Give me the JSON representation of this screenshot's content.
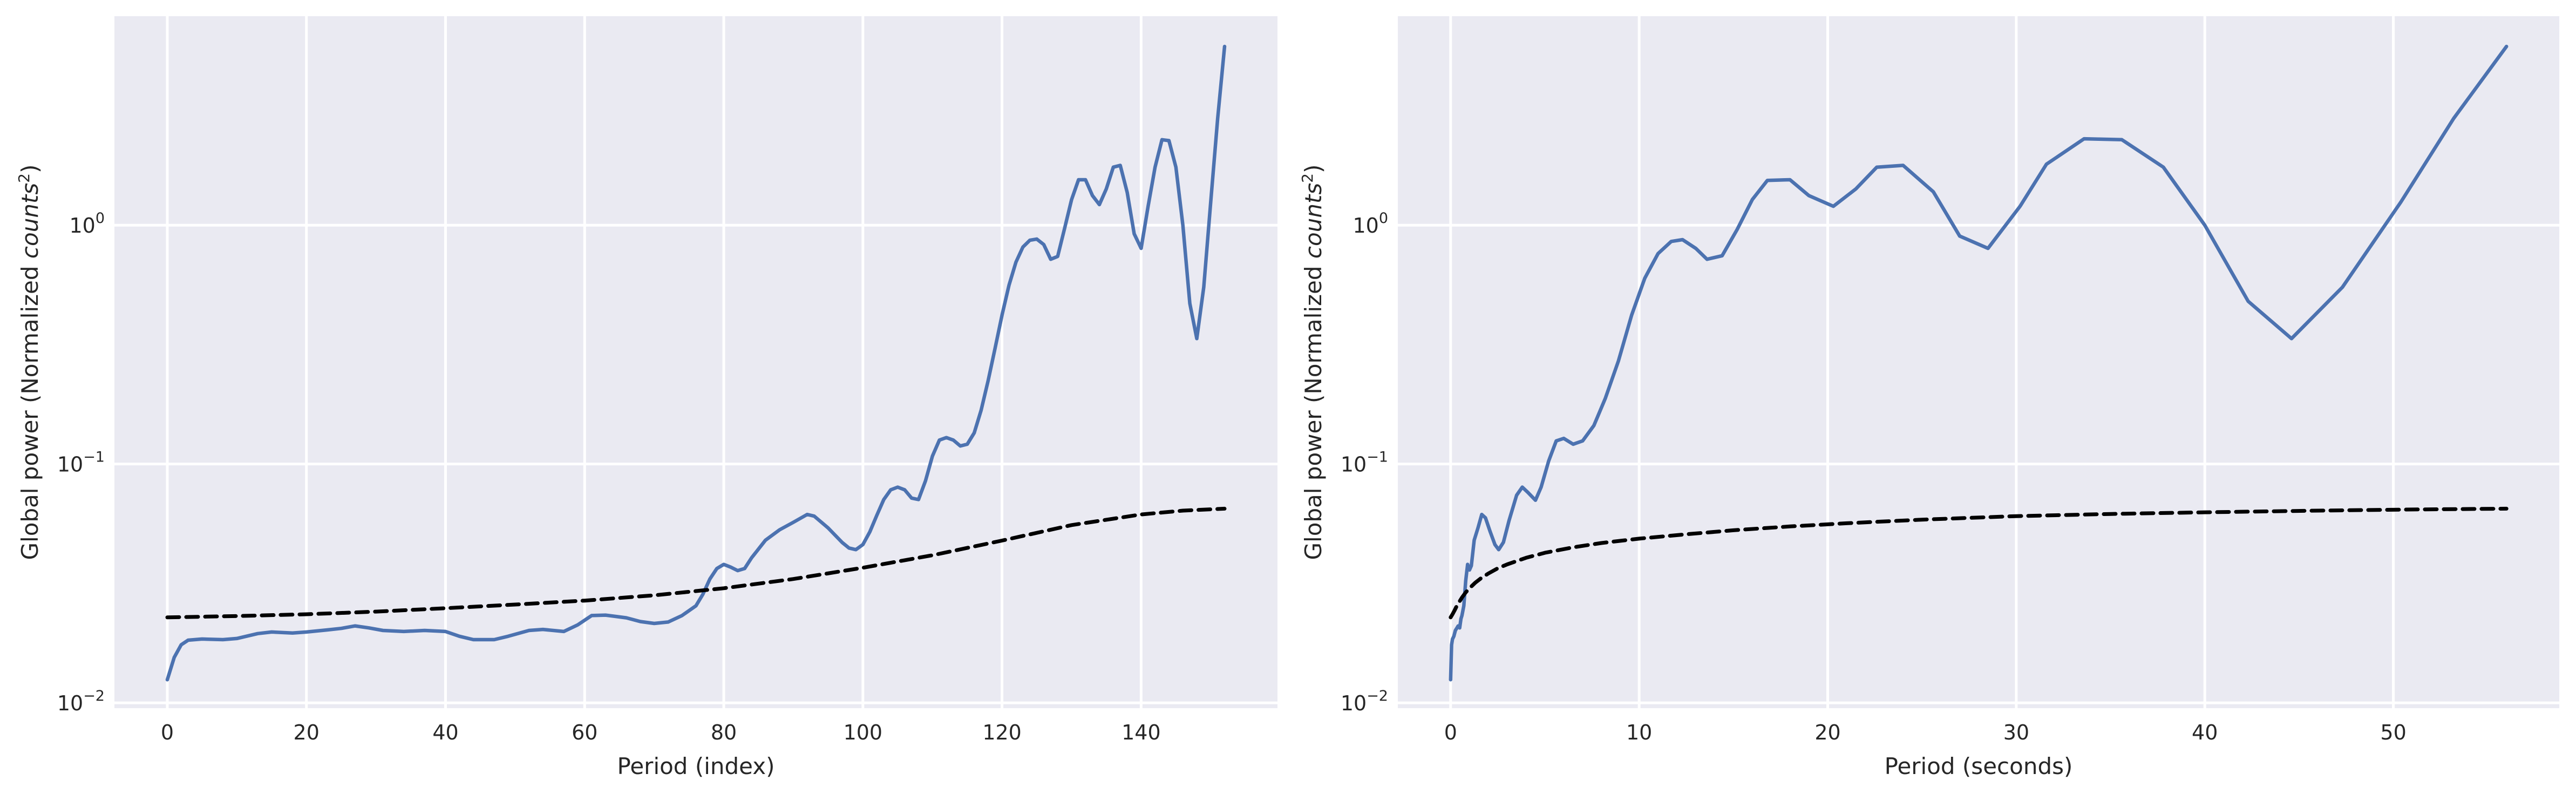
{
  "chart_data": [
    {
      "type": "line",
      "xlabel": "Period (index)",
      "ylabel_main": "Global power (Normalized ",
      "ylabel_italic": "counts",
      "ylabel_sup": "2",
      "ylabel_close": ")",
      "yscale": "log",
      "xlim": [
        -7.6,
        159.6
      ],
      "ylim": [
        0.0095,
        7.5
      ],
      "grid": true,
      "xticks": [
        0,
        20,
        40,
        60,
        80,
        100,
        120,
        140
      ],
      "xtick_labels": [
        "0",
        "20",
        "40",
        "60",
        "80",
        100,
        "120",
        "140"
      ],
      "yticks": [
        0.01,
        0.1,
        1
      ],
      "ytick_labels": [
        {
          "base": "10",
          "exp": "−2"
        },
        {
          "base": "10",
          "exp": "−1"
        },
        {
          "base": "10",
          "exp": "0"
        }
      ],
      "series": [
        {
          "color": "#4C72B0",
          "style": "solid",
          "points": [
            [
              0,
              0.0125
            ],
            [
              1,
              0.0155
            ],
            [
              2,
              0.0175
            ],
            [
              3,
              0.0183
            ],
            [
              5,
              0.0185
            ],
            [
              8,
              0.0184
            ],
            [
              10,
              0.0186
            ],
            [
              13,
              0.0195
            ],
            [
              15,
              0.0198
            ],
            [
              18,
              0.0196
            ],
            [
              20,
              0.0198
            ],
            [
              23,
              0.0202
            ],
            [
              25,
              0.0205
            ],
            [
              27,
              0.021
            ],
            [
              29,
              0.0206
            ],
            [
              31,
              0.0201
            ],
            [
              34,
              0.0199
            ],
            [
              37,
              0.0201
            ],
            [
              40,
              0.0199
            ],
            [
              42,
              0.019
            ],
            [
              44,
              0.0184
            ],
            [
              47,
              0.0184
            ],
            [
              49,
              0.019
            ],
            [
              52,
              0.0201
            ],
            [
              54,
              0.0203
            ],
            [
              57,
              0.0199
            ],
            [
              59,
              0.0212
            ],
            [
              61,
              0.0232
            ],
            [
              63,
              0.0233
            ],
            [
              66,
              0.0227
            ],
            [
              68,
              0.0219
            ],
            [
              70,
              0.0215
            ],
            [
              72,
              0.0218
            ],
            [
              74,
              0.0232
            ],
            [
              76,
              0.0255
            ],
            [
              77,
              0.0285
            ],
            [
              78,
              0.033
            ],
            [
              79,
              0.0365
            ],
            [
              80,
              0.038
            ],
            [
              81,
              0.037
            ],
            [
              82,
              0.0358
            ],
            [
              83,
              0.0365
            ],
            [
              84,
              0.0405
            ],
            [
              86,
              0.048
            ],
            [
              88,
              0.053
            ],
            [
              90,
              0.057
            ],
            [
              92,
              0.0615
            ],
            [
              93,
              0.0605
            ],
            [
              95,
              0.054
            ],
            [
              97,
              0.047
            ],
            [
              98,
              0.0445
            ],
            [
              99,
              0.0438
            ],
            [
              100,
              0.046
            ],
            [
              101,
              0.052
            ],
            [
              102,
              0.061
            ],
            [
              103,
              0.071
            ],
            [
              104,
              0.078
            ],
            [
              105,
              0.08
            ],
            [
              106,
              0.078
            ],
            [
              107,
              0.072
            ],
            [
              108,
              0.071
            ],
            [
              109,
              0.085
            ],
            [
              110,
              0.108
            ],
            [
              111,
              0.126
            ],
            [
              112,
              0.129
            ],
            [
              113,
              0.126
            ],
            [
              114,
              0.119
            ],
            [
              115,
              0.121
            ],
            [
              116,
              0.135
            ],
            [
              117,
              0.168
            ],
            [
              118,
              0.223
            ],
            [
              119,
              0.305
            ],
            [
              120,
              0.42
            ],
            [
              121,
              0.56
            ],
            [
              122,
              0.7
            ],
            [
              123,
              0.81
            ],
            [
              124,
              0.865
            ],
            [
              125,
              0.875
            ],
            [
              126,
              0.83
            ],
            [
              127,
              0.72
            ],
            [
              128,
              0.74
            ],
            [
              129,
              0.97
            ],
            [
              130,
              1.28
            ],
            [
              131,
              1.55
            ],
            [
              132,
              1.55
            ],
            [
              133,
              1.33
            ],
            [
              134,
              1.22
            ],
            [
              135,
              1.42
            ],
            [
              136,
              1.75
            ],
            [
              137,
              1.78
            ],
            [
              138,
              1.37
            ],
            [
              139,
              0.92
            ],
            [
              140,
              0.8
            ],
            [
              141,
              1.2
            ],
            [
              142,
              1.75
            ],
            [
              143,
              2.28
            ],
            [
              144,
              2.26
            ],
            [
              145,
              1.75
            ],
            [
              146,
              1.0
            ],
            [
              147,
              0.47
            ],
            [
              148,
              0.335
            ],
            [
              149,
              0.55
            ],
            [
              150,
              1.25
            ],
            [
              151,
              2.8
            ],
            [
              152,
              5.6
            ]
          ]
        },
        {
          "color": "#000000",
          "style": "dashed",
          "points": [
            [
              0,
              0.0228
            ],
            [
              10,
              0.0231
            ],
            [
              20,
              0.0235
            ],
            [
              30,
              0.0241
            ],
            [
              40,
              0.0249
            ],
            [
              50,
              0.0258
            ],
            [
              60,
              0.0268
            ],
            [
              70,
              0.0282
            ],
            [
              80,
              0.0302
            ],
            [
              90,
              0.033
            ],
            [
              100,
              0.0368
            ],
            [
              110,
              0.0415
            ],
            [
              120,
              0.0478
            ],
            [
              130,
              0.0555
            ],
            [
              140,
              0.0615
            ],
            [
              146,
              0.0638
            ],
            [
              152,
              0.065
            ]
          ]
        }
      ]
    },
    {
      "type": "line",
      "xlabel": "Period (seconds)",
      "ylabel_main": "Global power (Normalized ",
      "ylabel_italic": "counts",
      "ylabel_sup": "2",
      "ylabel_close": ")",
      "yscale": "log",
      "xlim": [
        -2.8,
        58.8
      ],
      "ylim": [
        0.0095,
        7.5
      ],
      "grid": true,
      "xticks": [
        0,
        10,
        20,
        30,
        40,
        50
      ],
      "xtick_labels": [
        "0",
        "10",
        "20",
        "30",
        "40",
        "50"
      ],
      "yticks": [
        0.01,
        0.1,
        1
      ],
      "ytick_labels": [
        {
          "base": "10",
          "exp": "−2"
        },
        {
          "base": "10",
          "exp": "−1"
        },
        {
          "base": "10",
          "exp": "0"
        }
      ],
      "series": [
        {
          "color": "#4C72B0",
          "style": "solid",
          "points": [
            [
              0.0,
              0.0125
            ],
            [
              0.05,
              0.0175
            ],
            [
              0.1,
              0.0185
            ],
            [
              0.17,
              0.019
            ],
            [
              0.25,
              0.0201
            ],
            [
              0.32,
              0.0205
            ],
            [
              0.4,
              0.021
            ],
            [
              0.48,
              0.0206
            ],
            [
              0.55,
              0.0225
            ],
            [
              0.6,
              0.0232
            ],
            [
              0.7,
              0.0255
            ],
            [
              0.8,
              0.0325
            ],
            [
              0.9,
              0.038
            ],
            [
              1.0,
              0.036
            ],
            [
              1.1,
              0.0375
            ],
            [
              1.25,
              0.048
            ],
            [
              1.45,
              0.054
            ],
            [
              1.65,
              0.0615
            ],
            [
              1.85,
              0.0595
            ],
            [
              2.1,
              0.052
            ],
            [
              2.35,
              0.046
            ],
            [
              2.55,
              0.0438
            ],
            [
              2.8,
              0.047
            ],
            [
              3.1,
              0.058
            ],
            [
              3.5,
              0.074
            ],
            [
              3.8,
              0.08
            ],
            [
              4.1,
              0.076
            ],
            [
              4.5,
              0.0705
            ],
            [
              4.8,
              0.08
            ],
            [
              5.2,
              0.103
            ],
            [
              5.6,
              0.125
            ],
            [
              6.0,
              0.128
            ],
            [
              6.5,
              0.121
            ],
            [
              7.0,
              0.125
            ],
            [
              7.6,
              0.145
            ],
            [
              8.2,
              0.188
            ],
            [
              8.9,
              0.27
            ],
            [
              9.6,
              0.42
            ],
            [
              10.3,
              0.6
            ],
            [
              11.0,
              0.76
            ],
            [
              11.7,
              0.855
            ],
            [
              12.3,
              0.87
            ],
            [
              13.0,
              0.8
            ],
            [
              13.6,
              0.72
            ],
            [
              14.4,
              0.745
            ],
            [
              15.2,
              0.96
            ],
            [
              16.0,
              1.28
            ],
            [
              16.8,
              1.54
            ],
            [
              18.0,
              1.55
            ],
            [
              19.0,
              1.33
            ],
            [
              20.3,
              1.2
            ],
            [
              21.5,
              1.42
            ],
            [
              22.6,
              1.75
            ],
            [
              24.0,
              1.78
            ],
            [
              25.6,
              1.38
            ],
            [
              27.0,
              0.9
            ],
            [
              28.5,
              0.8
            ],
            [
              30.2,
              1.2
            ],
            [
              31.6,
              1.8
            ],
            [
              33.6,
              2.3
            ],
            [
              35.6,
              2.28
            ],
            [
              37.8,
              1.75
            ],
            [
              40.0,
              1.0
            ],
            [
              42.3,
              0.48
            ],
            [
              44.6,
              0.335
            ],
            [
              47.3,
              0.55
            ],
            [
              50.4,
              1.25
            ],
            [
              53.2,
              2.8
            ],
            [
              56.0,
              5.6
            ]
          ]
        },
        {
          "color": "#000000",
          "style": "dashed",
          "points": [
            [
              0,
              0.0228
            ],
            [
              0.1,
              0.0235
            ],
            [
              0.2,
              0.0243
            ],
            [
              0.3,
              0.0252
            ],
            [
              0.45,
              0.0264
            ],
            [
              0.6,
              0.0276
            ],
            [
              0.8,
              0.029
            ],
            [
              1.0,
              0.0302
            ],
            [
              1.3,
              0.0318
            ],
            [
              1.6,
              0.0332
            ],
            [
              2.0,
              0.0348
            ],
            [
              2.5,
              0.0366
            ],
            [
              3.0,
              0.038
            ],
            [
              4.0,
              0.0405
            ],
            [
              5.0,
              0.0425
            ],
            [
              6.5,
              0.0448
            ],
            [
              8.0,
              0.0467
            ],
            [
              10.0,
              0.0487
            ],
            [
              12.5,
              0.0508
            ],
            [
              15.0,
              0.0528
            ],
            [
              18.0,
              0.0548
            ],
            [
              21.0,
              0.0565
            ],
            [
              25.0,
              0.0585
            ],
            [
              30.0,
              0.0605
            ],
            [
              35.0,
              0.0618
            ],
            [
              40.0,
              0.0628
            ],
            [
              46.0,
              0.0638
            ],
            [
              51.0,
              0.0645
            ],
            [
              56.0,
              0.065
            ]
          ]
        }
      ]
    }
  ]
}
